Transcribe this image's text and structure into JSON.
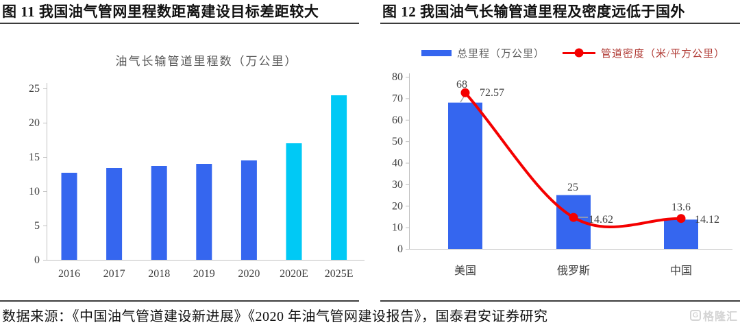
{
  "page": {
    "left_header": "图 11  我国油气管网里程数距离建设目标差距较大",
    "right_header": "图 12 我国油气长输管道里程及密度远低于国外",
    "footer": "数据来源：《中国油气管道建设新进展》《2020 年油气管网建设报告》，国泰君安证券研究",
    "watermark": "格隆汇",
    "watermark_initial": "G"
  },
  "colors": {
    "bar_blue": "#3566EF",
    "bar_cyan": "#00C9F5",
    "line_red": "#F40000",
    "axis_gray": "#BFBFBF",
    "tick_text": "#404040",
    "title_gray": "#595959",
    "leader_gray": "#A6A6A6",
    "legend_bar_text": "#595959",
    "legend_line_text": "#B03A34"
  },
  "chart_data": [
    {
      "type": "bar",
      "title": "油气长输管道里程数（万公里）",
      "categories": [
        "2016",
        "2017",
        "2018",
        "2019",
        "2020",
        "2020E",
        "2025E"
      ],
      "values": [
        12.7,
        13.4,
        13.7,
        14,
        14.5,
        17,
        24
      ],
      "bar_colors": [
        "#3566EF",
        "#3566EF",
        "#3566EF",
        "#3566EF",
        "#3566EF",
        "#00C9F5",
        "#00C9F5"
      ],
      "xlabel": "",
      "ylabel": "",
      "ylim": [
        0,
        25
      ],
      "ytick_step": 5,
      "grid": false,
      "legend_position": "none"
    },
    {
      "type": "bar+line",
      "title": "",
      "categories": [
        "美国",
        "俄罗斯",
        "中国"
      ],
      "series": [
        {
          "name": "总里程（万公里）",
          "type": "bar",
          "color": "#3566EF",
          "values": [
            68,
            25,
            13.6
          ],
          "labels": [
            "68",
            "25",
            "13.6"
          ]
        },
        {
          "name": "管道密度（米/平方公里）",
          "type": "line",
          "color": "#F40000",
          "values": [
            72.57,
            14.62,
            14.12
          ],
          "labels": [
            "72.57",
            "14.62",
            "14.12"
          ]
        }
      ],
      "ylim": [
        0,
        80
      ],
      "ytick_step": 10,
      "grid": false,
      "legend_position": "top"
    }
  ]
}
